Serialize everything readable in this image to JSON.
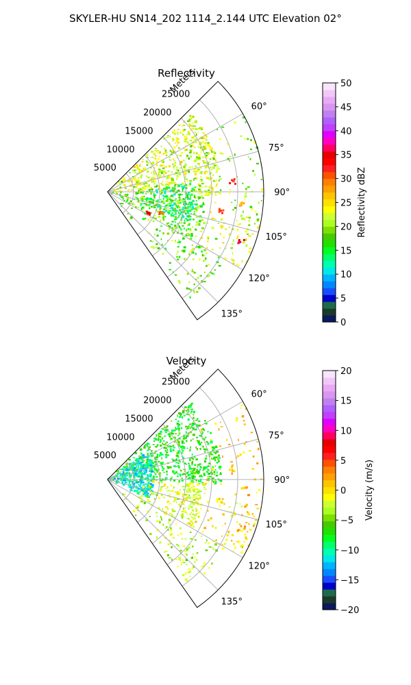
{
  "figure": {
    "suptitle": "SKYLER-HU  SN14_202  1114_2.144 UTC Elevation 02°"
  },
  "colors": {
    "grid": "#b0b0b0",
    "axis": "#000000"
  },
  "chart_data": [
    {
      "type": "heatmap",
      "projection": "polar-sector",
      "title": "Reflectivity",
      "range_axis_label": "Meters",
      "range_ticks": [
        5000,
        10000,
        15000,
        20000,
        25000
      ],
      "range_tick_labels": [
        "5000",
        "10000",
        "15000",
        "20000",
        "25000"
      ],
      "range_max": 30000,
      "azimuth_range_deg": [
        45,
        145
      ],
      "azimuth_ticks": [
        60,
        75,
        90,
        105,
        120,
        135
      ],
      "azimuth_tick_labels": [
        "60°",
        "75°",
        "90°",
        "105°",
        "120°",
        "135°"
      ],
      "grid": true,
      "colorbar": {
        "label": "Reflectivity dBZ",
        "range": [
          0,
          50
        ],
        "ticks": [
          0,
          5,
          10,
          15,
          20,
          25,
          30,
          35,
          40,
          45,
          50
        ],
        "tick_labels": [
          "0",
          "5",
          "10",
          "15",
          "20",
          "25",
          "30",
          "35",
          "40",
          "45",
          "50"
        ],
        "colors": [
          "#0a1a5c",
          "#1c3a2a",
          "#1e6b4c",
          "#0000c8",
          "#1a4cff",
          "#0088ff",
          "#00b4ff",
          "#00e8e8",
          "#00ffb0",
          "#00ff6a",
          "#00ff20",
          "#22e000",
          "#44cc00",
          "#7ee000",
          "#aaff20",
          "#ccff33",
          "#ffff00",
          "#ffe000",
          "#ffc400",
          "#ffa000",
          "#ff8000",
          "#ff5000",
          "#ff2020",
          "#ff0000",
          "#e60000",
          "#ff0060",
          "#ff00c0",
          "#e000ff",
          "#c040ff",
          "#b060ff",
          "#c080f0",
          "#d896f0",
          "#e8aaf4",
          "#f0c8f8",
          "#f8e4fc"
        ]
      },
      "echo_structure": [
        {
          "az_start": 47,
          "az_end": 92,
          "r_start": 0,
          "r_end": 22000,
          "dbz": 22,
          "density": 0.9
        },
        {
          "az_start": 92,
          "az_end": 120,
          "r_start": 0,
          "r_end": 19000,
          "dbz": 18,
          "density": 0.8
        },
        {
          "az_start": 84,
          "az_end": 110,
          "r_start": 5000,
          "r_end": 17000,
          "dbz": 14,
          "density": 0.75
        },
        {
          "az_start": 120,
          "az_end": 142,
          "r_start": 2000,
          "r_end": 26000,
          "dbz": 19,
          "density": 0.35
        },
        {
          "az_start": 60,
          "az_end": 100,
          "r_start": 19000,
          "r_end": 30000,
          "dbz": 20,
          "density": 0.18
        },
        {
          "az_start": 100,
          "az_end": 120,
          "r_start": 16000,
          "r_end": 30000,
          "dbz": 22,
          "density": 0.45
        }
      ],
      "hotspots": [
        {
          "az": 85,
          "r": 24000,
          "dbz": 32
        },
        {
          "az": 110,
          "r": 27500,
          "dbz": 36
        },
        {
          "az": 100,
          "r": 22000,
          "dbz": 32
        },
        {
          "az": 112,
          "r": 11000,
          "dbz": 30
        },
        {
          "az": 118,
          "r": 9000,
          "dbz": 36
        },
        {
          "az": 96,
          "r": 26000,
          "dbz": 28
        }
      ]
    },
    {
      "type": "heatmap",
      "projection": "polar-sector",
      "title": "Velocity",
      "range_axis_label": "Meters",
      "range_ticks": [
        5000,
        10000,
        15000,
        20000,
        25000
      ],
      "range_tick_labels": [
        "5000",
        "10000",
        "15000",
        "20000",
        "25000"
      ],
      "range_max": 30000,
      "azimuth_range_deg": [
        45,
        145
      ],
      "azimuth_ticks": [
        60,
        75,
        90,
        105,
        120,
        135
      ],
      "azimuth_tick_labels": [
        "60°",
        "75°",
        "90°",
        "105°",
        "120°",
        "135°"
      ],
      "grid": true,
      "colorbar": {
        "label": "Velocity (m/s)",
        "range": [
          -20,
          20
        ],
        "ticks": [
          -20,
          -15,
          -10,
          -5,
          0,
          5,
          10,
          15,
          20
        ],
        "tick_labels": [
          "−20",
          "−15",
          "−10",
          "−5",
          "0",
          "5",
          "10",
          "15",
          "20"
        ],
        "colors": [
          "#0a1a5c",
          "#1c3a2a",
          "#1e6b4c",
          "#0000c8",
          "#1a4cff",
          "#0088ff",
          "#00b4ff",
          "#00e8e8",
          "#00ffb0",
          "#00ff6a",
          "#00ff20",
          "#22e000",
          "#44cc00",
          "#7ee000",
          "#aaff20",
          "#ccff33",
          "#ffff00",
          "#ffe000",
          "#ffc400",
          "#ffa000",
          "#ff8000",
          "#ff5000",
          "#ff2020",
          "#ff0000",
          "#e60000",
          "#ff0060",
          "#ff00c0",
          "#e000ff",
          "#c040ff",
          "#b060ff",
          "#c080f0",
          "#d896f0",
          "#e8aaf4",
          "#f0c8f8",
          "#f8e4fc"
        ]
      },
      "echo_structure": [
        {
          "az_start": 47,
          "az_end": 92,
          "r_start": 0,
          "r_end": 22000,
          "vel": -7,
          "density": 0.9
        },
        {
          "az_start": 55,
          "az_end": 115,
          "r_start": 0,
          "r_end": 9000,
          "vel": -11,
          "density": 0.9
        },
        {
          "az_start": 92,
          "az_end": 120,
          "r_start": 5000,
          "r_end": 19000,
          "vel": -2,
          "density": 0.8
        },
        {
          "az_start": 120,
          "az_end": 142,
          "r_start": 2000,
          "r_end": 26000,
          "vel": -3,
          "density": 0.35
        },
        {
          "az_start": 60,
          "az_end": 100,
          "r_start": 19000,
          "r_end": 30000,
          "vel": 1,
          "density": 0.18
        },
        {
          "az_start": 100,
          "az_end": 120,
          "r_start": 16000,
          "r_end": 30000,
          "vel": 0,
          "density": 0.45
        }
      ],
      "hotspots": [
        {
          "az": 85,
          "r": 24000,
          "vel": 1
        },
        {
          "az": 110,
          "r": 27500,
          "vel": 2
        },
        {
          "az": 100,
          "r": 22000,
          "vel": 0
        }
      ]
    }
  ]
}
